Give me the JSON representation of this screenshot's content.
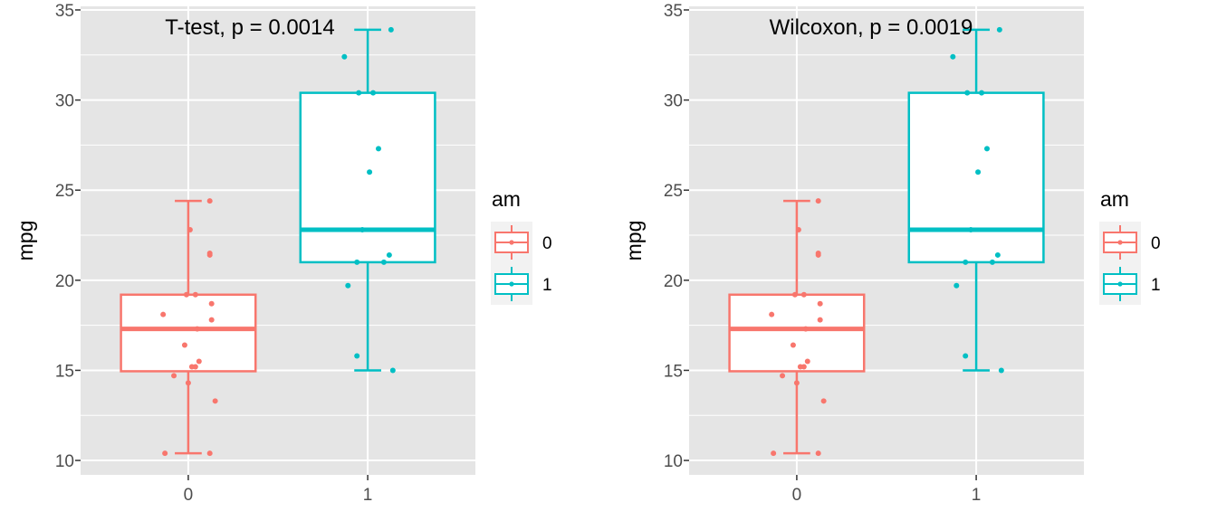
{
  "chart_data": [
    {
      "type": "boxplot",
      "annotation": "T-test, p = 0.0014",
      "xlabel": "",
      "ylabel": "mpg",
      "categories": [
        "0",
        "1"
      ],
      "ylim": [
        9.2,
        35.2
      ],
      "yticks": [
        10,
        15,
        20,
        25,
        30,
        35
      ],
      "legend": {
        "title": "am",
        "entries": [
          "0",
          "1"
        ],
        "position": "right"
      },
      "grid": true,
      "colors": {
        "0": "#F8766D",
        "1": "#00BFC4",
        "panel": "#E5E5E5",
        "grid": "#FFFFFF"
      },
      "boxes": [
        {
          "category": "0",
          "whisker_low": 10.4,
          "q1": 14.95,
          "median": 17.3,
          "q3": 19.2,
          "whisker_high": 24.4
        },
        {
          "category": "1",
          "whisker_low": 15.0,
          "q1": 21.0,
          "median": 22.8,
          "q3": 30.4,
          "whisker_high": 33.9
        }
      ],
      "points": [
        {
          "category": "0",
          "jitter": -0.13,
          "y": 10.4
        },
        {
          "category": "0",
          "jitter": 0.12,
          "y": 10.4
        },
        {
          "category": "0",
          "jitter": 0.15,
          "y": 13.3
        },
        {
          "category": "0",
          "jitter": 0.0,
          "y": 14.3
        },
        {
          "category": "0",
          "jitter": -0.08,
          "y": 14.7
        },
        {
          "category": "0",
          "jitter": 0.02,
          "y": 15.2
        },
        {
          "category": "0",
          "jitter": 0.04,
          "y": 15.2
        },
        {
          "category": "0",
          "jitter": 0.06,
          "y": 15.5
        },
        {
          "category": "0",
          "jitter": -0.02,
          "y": 16.4
        },
        {
          "category": "0",
          "jitter": 0.05,
          "y": 17.3
        },
        {
          "category": "0",
          "jitter": 0.13,
          "y": 17.8
        },
        {
          "category": "0",
          "jitter": -0.14,
          "y": 18.1
        },
        {
          "category": "0",
          "jitter": 0.13,
          "y": 18.7
        },
        {
          "category": "0",
          "jitter": -0.01,
          "y": 19.2
        },
        {
          "category": "0",
          "jitter": 0.04,
          "y": 19.2
        },
        {
          "category": "0",
          "jitter": 0.12,
          "y": 21.4
        },
        {
          "category": "0",
          "jitter": 0.12,
          "y": 21.5
        },
        {
          "category": "0",
          "jitter": 0.01,
          "y": 22.8
        },
        {
          "category": "0",
          "jitter": 0.12,
          "y": 24.4
        },
        {
          "category": "1",
          "jitter": 0.14,
          "y": 15.0
        },
        {
          "category": "1",
          "jitter": -0.06,
          "y": 15.8
        },
        {
          "category": "1",
          "jitter": -0.11,
          "y": 19.7
        },
        {
          "category": "1",
          "jitter": -0.06,
          "y": 21.0
        },
        {
          "category": "1",
          "jitter": 0.09,
          "y": 21.0
        },
        {
          "category": "1",
          "jitter": 0.12,
          "y": 21.4
        },
        {
          "category": "1",
          "jitter": -0.03,
          "y": 22.8
        },
        {
          "category": "1",
          "jitter": 0.01,
          "y": 26.0
        },
        {
          "category": "1",
          "jitter": 0.06,
          "y": 27.3
        },
        {
          "category": "1",
          "jitter": -0.05,
          "y": 30.4
        },
        {
          "category": "1",
          "jitter": 0.03,
          "y": 30.4
        },
        {
          "category": "1",
          "jitter": -0.13,
          "y": 32.4
        },
        {
          "category": "1",
          "jitter": 0.13,
          "y": 33.9
        }
      ]
    },
    {
      "type": "boxplot",
      "annotation": "Wilcoxon, p = 0.0019",
      "xlabel": "",
      "ylabel": "mpg",
      "categories": [
        "0",
        "1"
      ],
      "ylim": [
        9.2,
        35.2
      ],
      "yticks": [
        10,
        15,
        20,
        25,
        30,
        35
      ],
      "legend": {
        "title": "am",
        "entries": [
          "0",
          "1"
        ],
        "position": "right"
      },
      "grid": true,
      "colors": {
        "0": "#F8766D",
        "1": "#00BFC4",
        "panel": "#E5E5E5",
        "grid": "#FFFFFF"
      },
      "boxes": [
        {
          "category": "0",
          "whisker_low": 10.4,
          "q1": 14.95,
          "median": 17.3,
          "q3": 19.2,
          "whisker_high": 24.4
        },
        {
          "category": "1",
          "whisker_low": 15.0,
          "q1": 21.0,
          "median": 22.8,
          "q3": 30.4,
          "whisker_high": 33.9
        }
      ],
      "points": [
        {
          "category": "0",
          "jitter": -0.13,
          "y": 10.4
        },
        {
          "category": "0",
          "jitter": 0.12,
          "y": 10.4
        },
        {
          "category": "0",
          "jitter": 0.15,
          "y": 13.3
        },
        {
          "category": "0",
          "jitter": 0.0,
          "y": 14.3
        },
        {
          "category": "0",
          "jitter": -0.08,
          "y": 14.7
        },
        {
          "category": "0",
          "jitter": 0.02,
          "y": 15.2
        },
        {
          "category": "0",
          "jitter": 0.04,
          "y": 15.2
        },
        {
          "category": "0",
          "jitter": 0.06,
          "y": 15.5
        },
        {
          "category": "0",
          "jitter": -0.02,
          "y": 16.4
        },
        {
          "category": "0",
          "jitter": 0.05,
          "y": 17.3
        },
        {
          "category": "0",
          "jitter": 0.13,
          "y": 17.8
        },
        {
          "category": "0",
          "jitter": -0.14,
          "y": 18.1
        },
        {
          "category": "0",
          "jitter": 0.13,
          "y": 18.7
        },
        {
          "category": "0",
          "jitter": -0.01,
          "y": 19.2
        },
        {
          "category": "0",
          "jitter": 0.04,
          "y": 19.2
        },
        {
          "category": "0",
          "jitter": 0.12,
          "y": 21.4
        },
        {
          "category": "0",
          "jitter": 0.12,
          "y": 21.5
        },
        {
          "category": "0",
          "jitter": 0.01,
          "y": 22.8
        },
        {
          "category": "0",
          "jitter": 0.12,
          "y": 24.4
        },
        {
          "category": "1",
          "jitter": 0.14,
          "y": 15.0
        },
        {
          "category": "1",
          "jitter": -0.06,
          "y": 15.8
        },
        {
          "category": "1",
          "jitter": -0.11,
          "y": 19.7
        },
        {
          "category": "1",
          "jitter": -0.06,
          "y": 21.0
        },
        {
          "category": "1",
          "jitter": 0.09,
          "y": 21.0
        },
        {
          "category": "1",
          "jitter": 0.12,
          "y": 21.4
        },
        {
          "category": "1",
          "jitter": -0.03,
          "y": 22.8
        },
        {
          "category": "1",
          "jitter": 0.01,
          "y": 26.0
        },
        {
          "category": "1",
          "jitter": 0.06,
          "y": 27.3
        },
        {
          "category": "1",
          "jitter": -0.05,
          "y": 30.4
        },
        {
          "category": "1",
          "jitter": 0.03,
          "y": 30.4
        },
        {
          "category": "1",
          "jitter": -0.13,
          "y": 32.4
        },
        {
          "category": "1",
          "jitter": 0.13,
          "y": 33.9
        }
      ]
    }
  ]
}
